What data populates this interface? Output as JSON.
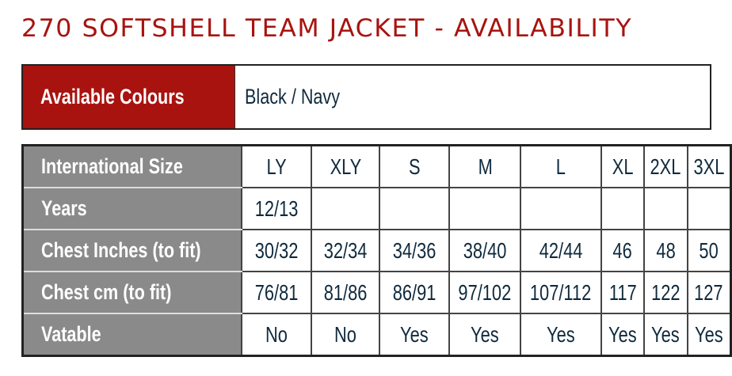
{
  "title": "270 SOFTSHELL TEAM JACKET - AVAILABILITY",
  "colours": {
    "label": "Available Colours",
    "value": "Black / Navy"
  },
  "size_table": {
    "rows": [
      {
        "label": "International Size",
        "values": [
          "LY",
          "XLY",
          "S",
          "M",
          "L",
          "XL",
          "2XL",
          "3XL"
        ]
      },
      {
        "label": "Years",
        "values": [
          "12/13",
          "",
          "",
          "",
          "",
          "",
          "",
          ""
        ]
      },
      {
        "label": "Chest Inches (to fit)",
        "values": [
          "30/32",
          "32/34",
          "34/36",
          "38/40",
          "42/44",
          "46",
          "48",
          "50"
        ]
      },
      {
        "label": "Chest cm (to fit)",
        "values": [
          "76/81",
          "81/86",
          "86/91",
          "97/102",
          "107/112",
          "117",
          "122",
          "127"
        ]
      },
      {
        "label": "Vatable",
        "values": [
          "No",
          "No",
          "Yes",
          "Yes",
          "Yes",
          "Yes",
          "Yes",
          "Yes"
        ]
      }
    ]
  },
  "colors": {
    "brand_red": "#a8130f",
    "label_gray": "#8a8a8a",
    "text_navy": "#0f2a3d"
  }
}
